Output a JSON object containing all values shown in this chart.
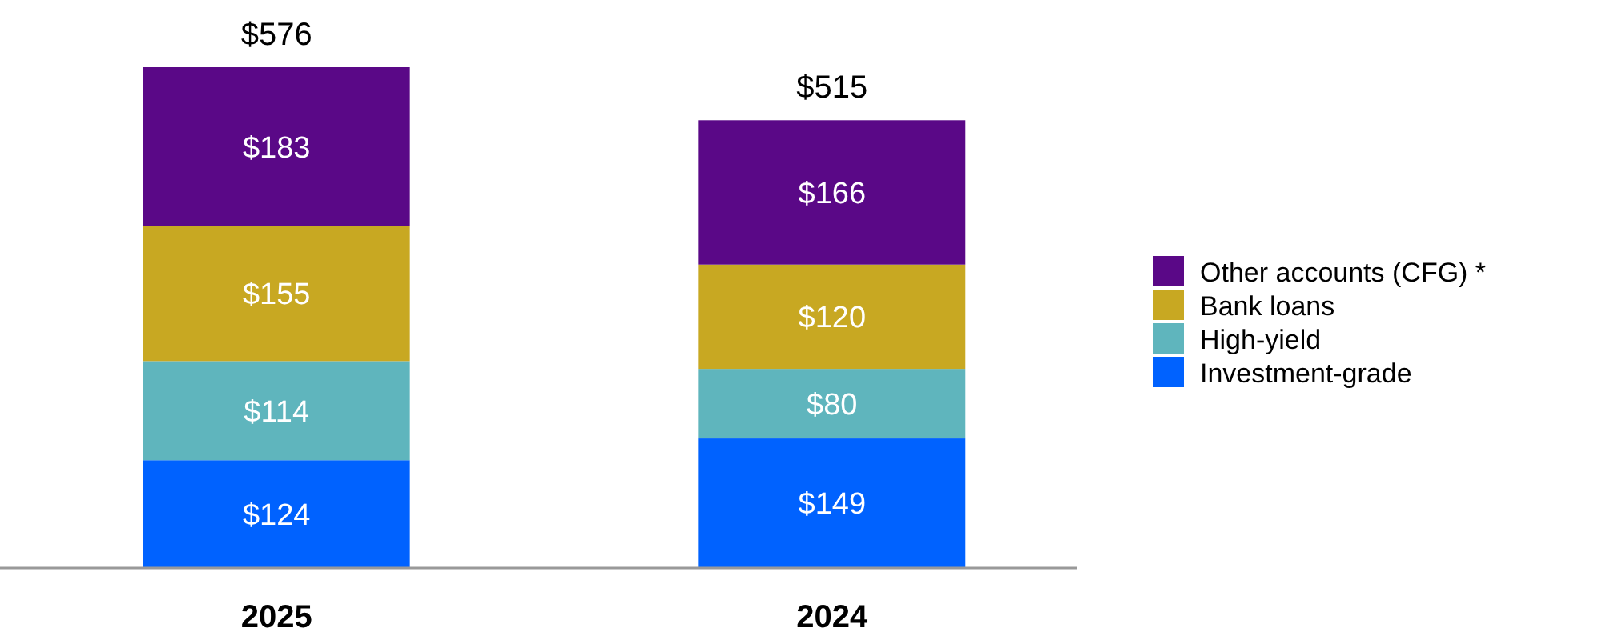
{
  "chart_data": {
    "type": "bar",
    "stacked": true,
    "categories": [
      "2025",
      "2024"
    ],
    "series": [
      {
        "name": "Investment-grade",
        "color": "#0062ff",
        "values": [
          124,
          149
        ],
        "value_labels": [
          "$124",
          "$149"
        ]
      },
      {
        "name": "High-yield",
        "color": "#5fb5bd",
        "values": [
          114,
          80
        ],
        "value_labels": [
          "$114",
          "$80"
        ]
      },
      {
        "name": "Bank loans",
        "color": "#c8a822",
        "values": [
          155,
          120
        ],
        "value_labels": [
          "$155",
          "$120"
        ]
      },
      {
        "name": "Other accounts (CFG) *",
        "color": "#5a0887",
        "values": [
          183,
          166
        ],
        "value_labels": [
          "$183",
          "$166"
        ]
      }
    ],
    "totals": [
      "$576",
      "$515"
    ],
    "legend": "right"
  }
}
